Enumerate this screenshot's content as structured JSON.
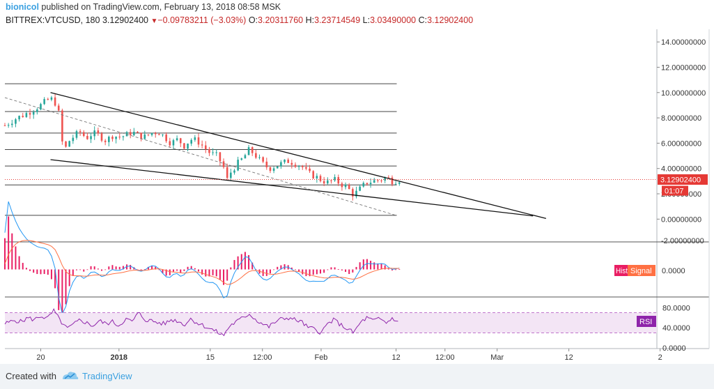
{
  "header": {
    "author": "bionicol",
    "published_text": " published on TradingView.com, February 13, 2018 08:58 MSK",
    "symbol": "BITTREX:VTCUSD, 180",
    "last": "3.12902400",
    "change_arrow": "▼",
    "change": "−0.09783211 (−3.03%)",
    "open_label": "O:",
    "open": "3.20311760",
    "high_label": "H:",
    "high": "3.23714549",
    "low_label": "L:",
    "low": "3.03490000",
    "close_label": "C:",
    "close": "3.12902400"
  },
  "chart_data": [
    {
      "type": "candlestick",
      "symbol": "BITTREX:VTCUSD",
      "interval": "180",
      "ylim": [
        -1.8,
        15.0
      ],
      "yticks": [
        0,
        2,
        4,
        6,
        8,
        10,
        12,
        14
      ],
      "ytick_labels": [
        "0.00000000",
        "2.00000000",
        "4.00000000",
        "6.00000000",
        "8.00000000",
        "10.00000000",
        "12.00000000",
        "14.00000000"
      ],
      "ytick_bottom_partial": "-2.00000000",
      "price_label": "3.12902400",
      "price_value": 3.129024,
      "countdown_label": "01:07",
      "xtick_labels": [
        "20",
        "2018",
        "15",
        "12:00",
        "Feb",
        "12",
        "12:00",
        "Mar",
        "12",
        "2"
      ],
      "xtick_positions": [
        0.0,
        12.0,
        26.0,
        34.0,
        43.0,
        54.5,
        62.0,
        70.0,
        81.0,
        95.0
      ],
      "x_domain": [
        -5.5,
        94.5
      ],
      "close_path": [
        [
          -5.5,
          7.4
        ],
        [
          -4,
          7.9
        ],
        [
          -2,
          8.4
        ],
        [
          0,
          9.0
        ],
        [
          1,
          9.4
        ],
        [
          2,
          9.5
        ],
        [
          3,
          8.0
        ],
        [
          3.5,
          4.8
        ],
        [
          4,
          6.0
        ],
        [
          5,
          6.5
        ],
        [
          6,
          6.9
        ],
        [
          7,
          6.4
        ],
        [
          8,
          6.8
        ],
        [
          9,
          6.6
        ],
        [
          10,
          6.2
        ],
        [
          11,
          6.6
        ],
        [
          12,
          6.5
        ],
        [
          13,
          6.6
        ],
        [
          14,
          6.9
        ],
        [
          15,
          6.6
        ],
        [
          16,
          6.5
        ],
        [
          17,
          6.8
        ],
        [
          18,
          6.9
        ],
        [
          19,
          6.5
        ],
        [
          20,
          6.0
        ],
        [
          21,
          6.3
        ],
        [
          22,
          5.8
        ],
        [
          23,
          6.3
        ],
        [
          24,
          6.2
        ],
        [
          25,
          5.7
        ],
        [
          26,
          5.2
        ],
        [
          27,
          5.0
        ],
        [
          28,
          4.2
        ],
        [
          28.5,
          3.0
        ],
        [
          29,
          3.6
        ],
        [
          30,
          4.3
        ],
        [
          31,
          4.8
        ],
        [
          32,
          5.5
        ],
        [
          33,
          5.0
        ],
        [
          34,
          4.4
        ],
        [
          35,
          4.0
        ],
        [
          36,
          4.2
        ],
        [
          37,
          4.4
        ],
        [
          38,
          4.6
        ],
        [
          39,
          4.4
        ],
        [
          40,
          4.2
        ],
        [
          41,
          3.6
        ],
        [
          42,
          3.4
        ],
        [
          43,
          3.1
        ],
        [
          44,
          2.9
        ],
        [
          45,
          3.1
        ],
        [
          46,
          2.8
        ],
        [
          47,
          2.5
        ],
        [
          48,
          1.9
        ],
        [
          49,
          2.4
        ],
        [
          50,
          2.9
        ],
        [
          51,
          3.0
        ],
        [
          52,
          3.1
        ],
        [
          53,
          3.3
        ],
        [
          54,
          3.0
        ],
        [
          55,
          3.13
        ]
      ],
      "horizontal_levels": [
        10.7,
        8.5,
        6.8,
        5.5,
        4.2,
        2.7,
        0.3
      ],
      "horizontal_levels_x_end": 54.6,
      "trendlines": [
        {
          "style": "solid",
          "from": [
            1.5,
            10.0
          ],
          "to": [
            77.5,
            0.05
          ]
        },
        {
          "style": "solid",
          "from": [
            1.5,
            4.7
          ],
          "to": [
            75.5,
            0.25
          ]
        },
        {
          "style": "dashed",
          "from": [
            -5.5,
            9.6
          ],
          "to": [
            54.6,
            0.28
          ]
        }
      ]
    },
    {
      "type": "line",
      "indicator": "MACD",
      "ytick_labels": [
        "0.0000"
      ],
      "ytick_values": [
        0
      ],
      "ylim": [
        -1.8,
        1.8
      ],
      "legend": [
        "Hist",
        "Signal"
      ],
      "series": [
        {
          "name": "MACD",
          "color": "#2196f3"
        },
        {
          "name": "Signal",
          "color": "#ff7043"
        }
      ]
    },
    {
      "type": "line",
      "indicator": "RSI",
      "ylim": [
        0,
        100
      ],
      "yticks": [
        0,
        40,
        80
      ],
      "ytick_labels": [
        "0.0000",
        "40.0000",
        "80.0000"
      ],
      "band": [
        30,
        70
      ],
      "legend": [
        "RSI"
      ],
      "rsi_path": [
        [
          -5.5,
          48
        ],
        [
          -4,
          55
        ],
        [
          -3,
          52
        ],
        [
          -2,
          60
        ],
        [
          -1,
          56
        ],
        [
          0,
          64
        ],
        [
          1,
          58
        ],
        [
          2,
          74
        ],
        [
          3,
          54
        ],
        [
          4,
          38
        ],
        [
          5,
          46
        ],
        [
          6,
          56
        ],
        [
          7,
          50
        ],
        [
          8,
          44
        ],
        [
          9,
          54
        ],
        [
          10,
          48
        ],
        [
          11,
          52
        ],
        [
          12,
          44
        ],
        [
          13,
          58
        ],
        [
          14,
          52
        ],
        [
          15,
          70
        ],
        [
          16,
          56
        ],
        [
          17,
          54
        ],
        [
          18,
          50
        ],
        [
          19,
          48
        ],
        [
          20,
          56
        ],
        [
          21,
          54
        ],
        [
          22,
          46
        ],
        [
          23,
          58
        ],
        [
          24,
          50
        ],
        [
          25,
          44
        ],
        [
          26,
          38
        ],
        [
          27,
          32
        ],
        [
          28,
          24
        ],
        [
          29,
          44
        ],
        [
          30,
          52
        ],
        [
          31,
          60
        ],
        [
          32,
          68
        ],
        [
          33,
          56
        ],
        [
          34,
          48
        ],
        [
          35,
          42
        ],
        [
          36,
          52
        ],
        [
          37,
          58
        ],
        [
          38,
          60
        ],
        [
          39,
          56
        ],
        [
          40,
          52
        ],
        [
          41,
          40
        ],
        [
          42,
          38
        ],
        [
          43,
          30
        ],
        [
          44,
          48
        ],
        [
          45,
          56
        ],
        [
          46,
          46
        ],
        [
          47,
          38
        ],
        [
          48,
          30
        ],
        [
          49,
          50
        ],
        [
          50,
          60
        ],
        [
          51,
          54
        ],
        [
          52,
          58
        ],
        [
          53,
          50
        ],
        [
          54,
          60
        ],
        [
          55,
          48
        ]
      ]
    }
  ],
  "footer": {
    "created_with": "Created with",
    "brand": "TradingView"
  }
}
